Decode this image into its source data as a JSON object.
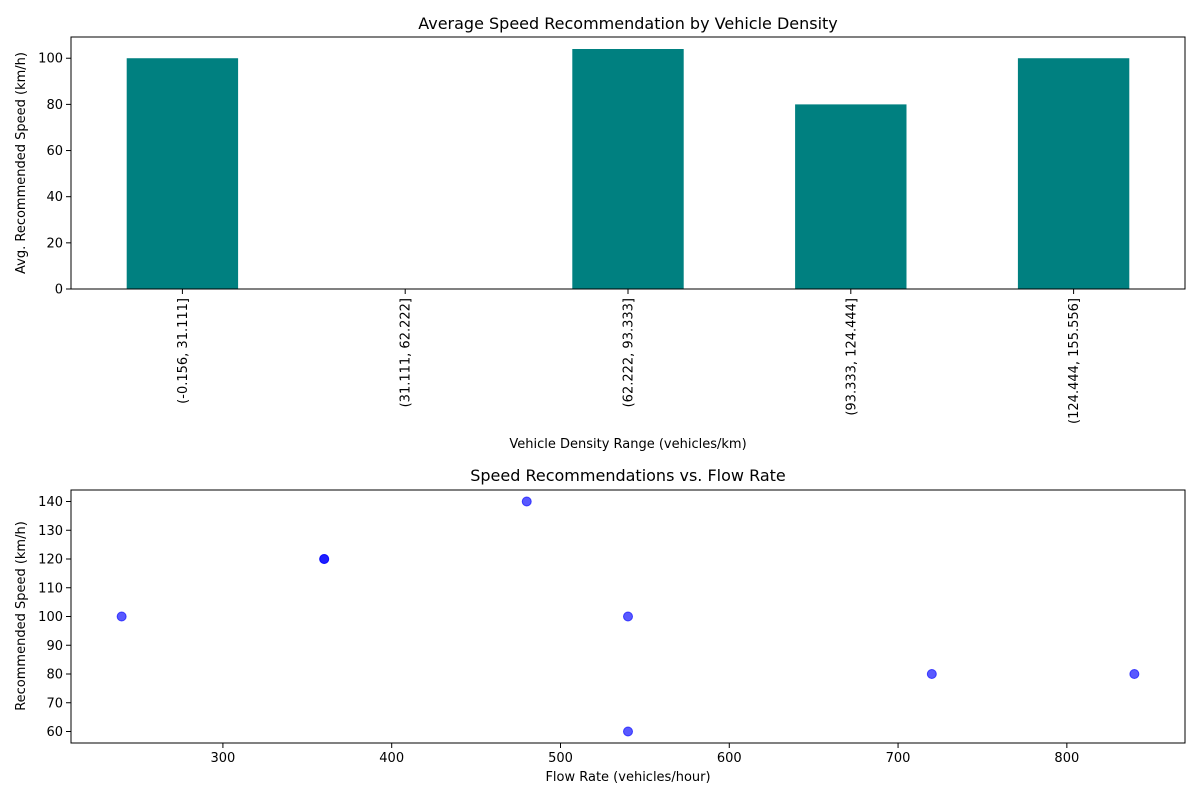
{
  "chart_data": [
    {
      "type": "bar",
      "title": "Average Speed Recommendation by Vehicle Density",
      "xlabel": "Vehicle Density Range (vehicles/km)",
      "ylabel": "Avg. Recommended Speed (km/h)",
      "categories": [
        "(-0.156, 31.111]",
        "(31.111, 62.222]",
        "(62.222, 93.333]",
        "(93.333, 124.444]",
        "(124.444, 155.556]"
      ],
      "values": [
        100,
        null,
        104,
        80,
        100
      ],
      "ylim": [
        0,
        109.2
      ],
      "yticks": [
        0,
        20,
        40,
        60,
        80,
        100
      ],
      "color": "#008080",
      "grid": false
    },
    {
      "type": "scatter",
      "title": "Speed Recommendations vs. Flow Rate",
      "xlabel": "Flow Rate (vehicles/hour)",
      "ylabel": "Recommended Speed (km/h)",
      "points": [
        {
          "x": 240,
          "y": 100
        },
        {
          "x": 360,
          "y": 120
        },
        {
          "x": 360,
          "y": 120
        },
        {
          "x": 480,
          "y": 140
        },
        {
          "x": 540,
          "y": 100
        },
        {
          "x": 540,
          "y": 60
        },
        {
          "x": 720,
          "y": 80
        },
        {
          "x": 840,
          "y": 80
        }
      ],
      "xlim": [
        210,
        870
      ],
      "ylim": [
        56,
        144
      ],
      "xticks": [
        300,
        400,
        500,
        600,
        700,
        800
      ],
      "yticks": [
        60,
        70,
        80,
        90,
        100,
        110,
        120,
        130,
        140
      ],
      "color": "#0000ff",
      "alpha": 0.65,
      "grid": false
    }
  ]
}
